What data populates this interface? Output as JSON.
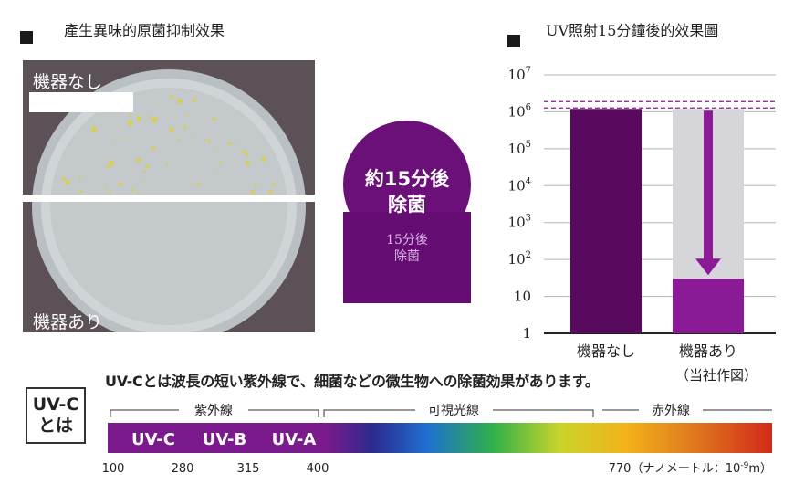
{
  "left_panel": {
    "title": "產生異味的原菌抑制效果",
    "label_top": "機器なし",
    "label_bottom": "機器あり"
  },
  "center": {
    "line1": "約15分後",
    "line2": "除菌",
    "shadow_line1": "15分後",
    "shadow_line2": "除菌",
    "color": "#6b0f79"
  },
  "right_title": "UV照射15分鐘後的效果圖",
  "note": "（当社作図）",
  "chart_data": {
    "type": "bar",
    "scale": "log",
    "categories": [
      "機器なし",
      "機器あり"
    ],
    "values": [
      1200000,
      30
    ],
    "ylim": [
      1,
      10000000
    ],
    "y_ticks": [
      {
        "value": 1,
        "base": "1",
        "exp": ""
      },
      {
        "value": 10,
        "base": "10",
        "exp": ""
      },
      {
        "value": 100,
        "base": "10",
        "exp": "2"
      },
      {
        "value": 1000,
        "base": "10",
        "exp": "3"
      },
      {
        "value": 10000,
        "base": "10",
        "exp": "4"
      },
      {
        "value": 100000,
        "base": "10",
        "exp": "5"
      },
      {
        "value": 1000000,
        "base": "10",
        "exp": "6"
      },
      {
        "value": 10000000,
        "base": "10",
        "exp": "7"
      }
    ],
    "grid": true,
    "bar_colors": [
      "#5a0a5e",
      "#8a1a96"
    ],
    "background_bar_color": "#d6d6da"
  },
  "uvc_box": {
    "line1": "UV-C",
    "line2": "とは"
  },
  "description": "UV-Cとは波長の短い紫外線で、細菌などの微生物への除菌効果があります。",
  "spectrum": {
    "ranges": [
      "紫外線",
      "可視光線",
      "赤外線"
    ],
    "bands": [
      "UV-C",
      "UV-B",
      "UV-A"
    ],
    "ticks": [
      "100",
      "280",
      "315",
      "400"
    ],
    "end_label": "770（ナノメートル：10",
    "end_exp": "-9",
    "end_suffix": "m）"
  }
}
